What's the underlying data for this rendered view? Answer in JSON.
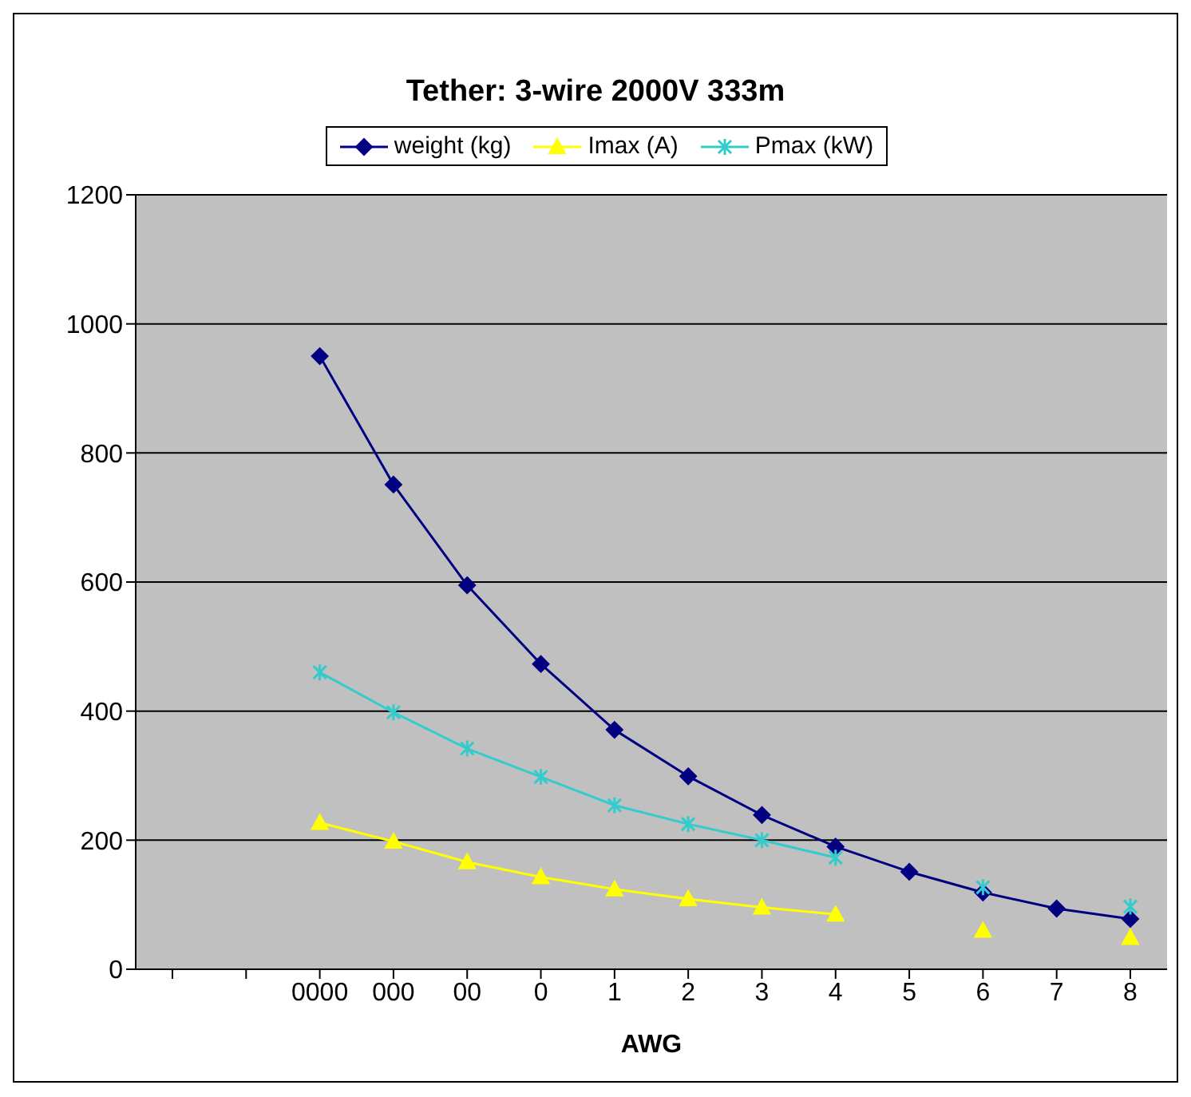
{
  "chart_data": {
    "type": "line",
    "title": "Tether: 3-wire 2000V 333m",
    "xlabel": "AWG",
    "categories": [
      null,
      null,
      "0000",
      "000",
      "00",
      "0",
      "1",
      "2",
      "3",
      "4",
      "5",
      "6",
      "7",
      "8"
    ],
    "series": [
      {
        "name": "weight (kg)",
        "color": "#000080",
        "marker": "diamond",
        "values": [
          null,
          null,
          950,
          751,
          595,
          473,
          371,
          299,
          239,
          190,
          151,
          119,
          94,
          78
        ]
      },
      {
        "name": "Imax (A)",
        "color": "#ffff00",
        "marker": "triangle",
        "values": [
          null,
          null,
          227,
          198,
          166,
          143,
          124,
          109,
          96,
          85,
          null,
          60,
          null,
          49
        ]
      },
      {
        "name": "Pmax (kW)",
        "color": "#33cccc",
        "marker": "cross",
        "values": [
          null,
          null,
          460,
          398,
          342,
          298,
          254,
          225,
          200,
          173,
          null,
          127,
          null,
          97
        ]
      }
    ],
    "ylim": [
      0,
      1200
    ],
    "yticks": [
      0,
      200,
      400,
      600,
      800,
      1000,
      1200
    ],
    "grid": "y",
    "legend": "top"
  }
}
